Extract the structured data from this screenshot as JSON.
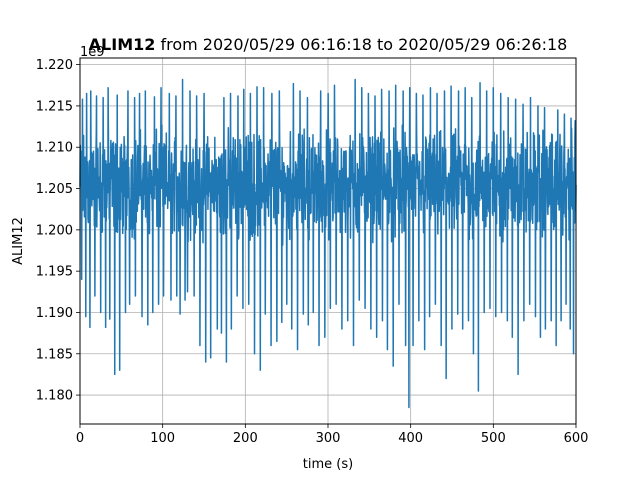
{
  "chart_data": {
    "type": "line",
    "title_bold": "ALIM12",
    "title_rest": " from 2020/05/29 06:16:18 to 2020/05/29 06:26:18",
    "xlabel": "time (s)",
    "ylabel": "ALIM12",
    "offset_text": "1e9",
    "xlim": [
      0,
      600
    ],
    "ylim": [
      1.1765,
      1.2208
    ],
    "xticks": [
      0,
      100,
      200,
      300,
      400,
      500,
      600
    ],
    "yticks": [
      1.18,
      1.185,
      1.19,
      1.195,
      1.2,
      1.205,
      1.21,
      1.215,
      1.22
    ],
    "ytick_labels": [
      "1.180",
      "1.185",
      "1.190",
      "1.195",
      "1.200",
      "1.205",
      "1.210",
      "1.215",
      "1.220"
    ],
    "grid": true,
    "series": [
      {
        "color": "#1f77b4",
        "center": 1.2055,
        "band_low": 1.1985,
        "band_high": 1.2128,
        "points": 1800,
        "upper_spikes": [
          [
            3,
            1.2158
          ],
          [
            8,
            1.2165
          ],
          [
            13,
            1.2168
          ],
          [
            20,
            1.2162
          ],
          [
            28,
            1.216
          ],
          [
            34,
            1.2172
          ],
          [
            45,
            1.2163
          ],
          [
            58,
            1.2168
          ],
          [
            66,
            1.216
          ],
          [
            72,
            1.2165
          ],
          [
            79,
            1.2168
          ],
          [
            90,
            1.2161
          ],
          [
            98,
            1.2172
          ],
          [
            108,
            1.2165
          ],
          [
            116,
            1.2162
          ],
          [
            124,
            1.2182
          ],
          [
            133,
            1.2168
          ],
          [
            141,
            1.2162
          ],
          [
            150,
            1.2165
          ],
          [
            158,
            1.217
          ],
          [
            166,
            1.2163
          ],
          [
            174,
            1.216
          ],
          [
            182,
            1.2165
          ],
          [
            191,
            1.2162
          ],
          [
            198,
            1.217
          ],
          [
            206,
            1.2165
          ],
          [
            214,
            1.2173
          ],
          [
            222,
            1.2172
          ],
          [
            232,
            1.2165
          ],
          [
            241,
            1.2168
          ],
          [
            250,
            1.216
          ],
          [
            258,
            1.2177
          ],
          [
            266,
            1.2168
          ],
          [
            275,
            1.216
          ],
          [
            282,
            1.2192
          ],
          [
            291,
            1.2168
          ],
          [
            300,
            1.2165
          ],
          [
            308,
            1.2175
          ],
          [
            317,
            1.216
          ],
          [
            324,
            1.2168
          ],
          [
            333,
            1.2182
          ],
          [
            341,
            1.2172
          ],
          [
            349,
            1.2165
          ],
          [
            357,
            1.2162
          ],
          [
            365,
            1.217
          ],
          [
            374,
            1.2168
          ],
          [
            382,
            1.2175
          ],
          [
            391,
            1.2168
          ],
          [
            399,
            1.2172
          ],
          [
            407,
            1.2165
          ],
          [
            415,
            1.2163
          ],
          [
            424,
            1.2172
          ],
          [
            432,
            1.2165
          ],
          [
            441,
            1.2168
          ],
          [
            449,
            1.2174
          ],
          [
            458,
            1.2168
          ],
          [
            466,
            1.2172
          ],
          [
            474,
            1.216
          ],
          [
            484,
            1.2178
          ],
          [
            492,
            1.2168
          ],
          [
            500,
            1.2172
          ],
          [
            509,
            1.2165
          ],
          [
            518,
            1.216
          ],
          [
            527,
            1.2158
          ],
          [
            536,
            1.2152
          ],
          [
            545,
            1.216
          ],
          [
            554,
            1.215
          ],
          [
            562,
            1.2148
          ],
          [
            570,
            1.214
          ],
          [
            578,
            1.2145
          ],
          [
            586,
            1.214
          ],
          [
            594,
            1.2135
          ],
          [
            599,
            1.2132
          ]
        ],
        "lower_spikes": [
          [
            2,
            1.194
          ],
          [
            7,
            1.1895
          ],
          [
            12,
            1.1882
          ],
          [
            18,
            1.192
          ],
          [
            25,
            1.19
          ],
          [
            31,
            1.1882
          ],
          [
            36,
            1.1892
          ],
          [
            42,
            1.1825
          ],
          [
            48,
            1.183
          ],
          [
            55,
            1.19
          ],
          [
            60,
            1.191
          ],
          [
            67,
            1.192
          ],
          [
            75,
            1.1895
          ],
          [
            82,
            1.1885
          ],
          [
            88,
            1.19
          ],
          [
            95,
            1.191
          ],
          [
            101,
            1.192
          ],
          [
            110,
            1.1915
          ],
          [
            117,
            1.192
          ],
          [
            121,
            1.1898
          ],
          [
            127,
            1.1915
          ],
          [
            130,
            1.1925
          ],
          [
            138,
            1.192
          ],
          [
            145,
            1.186
          ],
          [
            152,
            1.184
          ],
          [
            158,
            1.1845
          ],
          [
            166,
            1.188
          ],
          [
            171,
            1.1875
          ],
          [
            177,
            1.184
          ],
          [
            183,
            1.188
          ],
          [
            190,
            1.192
          ],
          [
            197,
            1.1905
          ],
          [
            204,
            1.191
          ],
          [
            211,
            1.185
          ],
          [
            218,
            1.183
          ],
          [
            224,
            1.1898
          ],
          [
            231,
            1.186
          ],
          [
            238,
            1.1865
          ],
          [
            244,
            1.1888
          ],
          [
            250,
            1.191
          ],
          [
            256,
            1.188
          ],
          [
            263,
            1.1855
          ],
          [
            270,
            1.1898
          ],
          [
            276,
            1.1885
          ],
          [
            282,
            1.19
          ],
          [
            289,
            1.186
          ],
          [
            296,
            1.187
          ],
          [
            303,
            1.1905
          ],
          [
            310,
            1.191
          ],
          [
            317,
            1.188
          ],
          [
            324,
            1.189
          ],
          [
            331,
            1.186
          ],
          [
            338,
            1.1915
          ],
          [
            345,
            1.1905
          ],
          [
            352,
            1.188
          ],
          [
            359,
            1.187
          ],
          [
            366,
            1.189
          ],
          [
            372,
            1.1855
          ],
          [
            379,
            1.1835
          ],
          [
            386,
            1.191
          ],
          [
            394,
            1.186
          ],
          [
            398,
            1.1785
          ],
          [
            403,
            1.186
          ],
          [
            410,
            1.189
          ],
          [
            417,
            1.1855
          ],
          [
            423,
            1.1895
          ],
          [
            430,
            1.191
          ],
          [
            437,
            1.186
          ],
          [
            443,
            1.182
          ],
          [
            450,
            1.188
          ],
          [
            457,
            1.1898
          ],
          [
            463,
            1.188
          ],
          [
            470,
            1.189
          ],
          [
            476,
            1.185
          ],
          [
            482,
            1.1805
          ],
          [
            489,
            1.19
          ],
          [
            496,
            1.1905
          ],
          [
            503,
            1.1895
          ],
          [
            510,
            1.19
          ],
          [
            517,
            1.189
          ],
          [
            523,
            1.187
          ],
          [
            530,
            1.1825
          ],
          [
            537,
            1.189
          ],
          [
            544,
            1.191
          ],
          [
            551,
            1.1895
          ],
          [
            557,
            1.187
          ],
          [
            563,
            1.188
          ],
          [
            570,
            1.189
          ],
          [
            576,
            1.186
          ],
          [
            582,
            1.189
          ],
          [
            588,
            1.191
          ],
          [
            593,
            1.188
          ],
          [
            597,
            1.185
          ]
        ]
      }
    ]
  }
}
